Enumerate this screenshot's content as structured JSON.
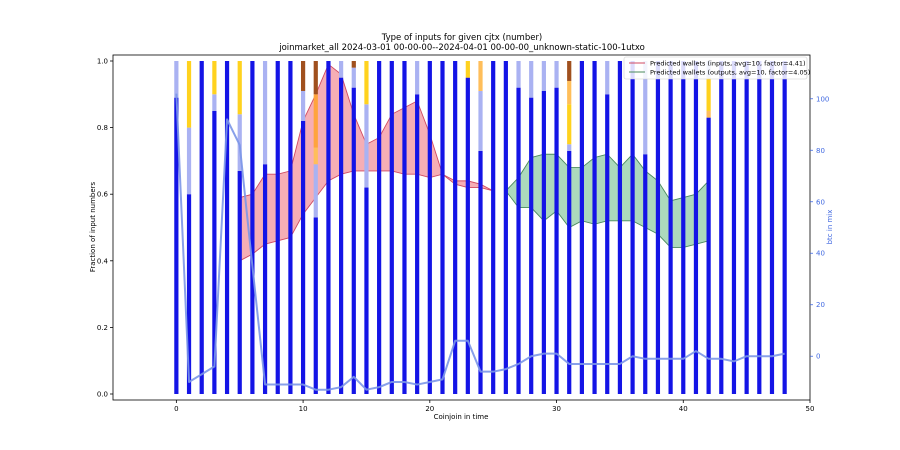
{
  "chart_data": {
    "type": "bar",
    "title": "Type of inputs for given cjtx (number)",
    "subtitle": "joinmarket_all 2024-03-01 00-00-00--2024-04-01 00-00-00_unknown-static-100-1utxo",
    "xlabel": "Coinjoin in time",
    "ylabel": "Fraction of input numbers",
    "y2label": "btc in mix",
    "xlim": [
      -5,
      50
    ],
    "ylim": [
      0,
      1
    ],
    "y2lim": [
      -17,
      117
    ],
    "x_ticks": [
      "0",
      "10",
      "20",
      "30",
      "40",
      "50"
    ],
    "y_ticks": [
      "0.0",
      "0.2",
      "0.4",
      "0.6",
      "0.8",
      "1.0"
    ],
    "y2_ticks": [
      "0",
      "20",
      "40",
      "60",
      "80",
      "100"
    ],
    "legend_position": "top-right",
    "colors": {
      "blue": "#1414e6",
      "light_blue": "#aab2f2",
      "yellow": "#ffd21e",
      "light_orange": "#ffbe5a",
      "orange": "#ffa43c",
      "brown": "#a0501e",
      "btc_line": "#7b96e8",
      "inputs_fill": "#f5a0a8",
      "inputs_line": "#d04a62",
      "outputs_fill": "#9ed2b0",
      "outputs_line": "#4a8a5c"
    },
    "bars": [
      {
        "x": 0,
        "segments": [
          {
            "c": "blue",
            "v": 0.89
          },
          {
            "c": "light_blue",
            "v": 0.11
          }
        ]
      },
      {
        "x": 1,
        "segments": [
          {
            "c": "blue",
            "v": 0.6
          },
          {
            "c": "light_blue",
            "v": 0.2
          },
          {
            "c": "yellow",
            "v": 0.2
          }
        ]
      },
      {
        "x": 2,
        "segments": [
          {
            "c": "blue",
            "v": 1.0
          }
        ]
      },
      {
        "x": 3,
        "segments": [
          {
            "c": "blue",
            "v": 0.85
          },
          {
            "c": "light_blue",
            "v": 0.05
          },
          {
            "c": "yellow",
            "v": 0.1
          }
        ]
      },
      {
        "x": 4,
        "segments": [
          {
            "c": "blue",
            "v": 1.0
          }
        ]
      },
      {
        "x": 5,
        "segments": [
          {
            "c": "blue",
            "v": 0.67
          },
          {
            "c": "light_blue",
            "v": 0.17
          },
          {
            "c": "yellow",
            "v": 0.16
          }
        ]
      },
      {
        "x": 6,
        "segments": [
          {
            "c": "blue",
            "v": 1.0
          }
        ]
      },
      {
        "x": 7,
        "segments": [
          {
            "c": "blue",
            "v": 0.69
          },
          {
            "c": "light_blue",
            "v": 0.31
          }
        ]
      },
      {
        "x": 8,
        "segments": [
          {
            "c": "blue",
            "v": 1.0
          }
        ]
      },
      {
        "x": 9,
        "segments": [
          {
            "c": "blue",
            "v": 1.0
          }
        ]
      },
      {
        "x": 10,
        "segments": [
          {
            "c": "blue",
            "v": 0.82
          },
          {
            "c": "light_blue",
            "v": 0.09
          },
          {
            "c": "brown",
            "v": 0.09
          }
        ]
      },
      {
        "x": 11,
        "segments": [
          {
            "c": "blue",
            "v": 0.53
          },
          {
            "c": "light_blue",
            "v": 0.16
          },
          {
            "c": "light_orange",
            "v": 0.05
          },
          {
            "c": "orange",
            "v": 0.16
          },
          {
            "c": "brown",
            "v": 0.1
          }
        ]
      },
      {
        "x": 12,
        "segments": [
          {
            "c": "blue",
            "v": 1.0
          }
        ]
      },
      {
        "x": 13,
        "segments": [
          {
            "c": "blue",
            "v": 0.95
          },
          {
            "c": "light_blue",
            "v": 0.05
          }
        ]
      },
      {
        "x": 14,
        "segments": [
          {
            "c": "blue",
            "v": 0.92
          },
          {
            "c": "light_blue",
            "v": 0.06
          },
          {
            "c": "brown",
            "v": 0.02
          }
        ]
      },
      {
        "x": 15,
        "segments": [
          {
            "c": "blue",
            "v": 0.62
          },
          {
            "c": "light_blue",
            "v": 0.25
          },
          {
            "c": "yellow",
            "v": 0.13
          }
        ]
      },
      {
        "x": 16,
        "segments": [
          {
            "c": "blue",
            "v": 1.0
          }
        ]
      },
      {
        "x": 17,
        "segments": [
          {
            "c": "blue",
            "v": 1.0
          }
        ]
      },
      {
        "x": 18,
        "segments": [
          {
            "c": "blue",
            "v": 1.0
          }
        ]
      },
      {
        "x": 19,
        "segments": [
          {
            "c": "blue",
            "v": 0.9
          },
          {
            "c": "light_blue",
            "v": 0.1
          }
        ]
      },
      {
        "x": 20,
        "segments": [
          {
            "c": "blue",
            "v": 1.0
          }
        ]
      },
      {
        "x": 21,
        "segments": [
          {
            "c": "blue",
            "v": 1.0
          }
        ]
      },
      {
        "x": 22,
        "segments": [
          {
            "c": "blue",
            "v": 1.0
          }
        ]
      },
      {
        "x": 23,
        "segments": [
          {
            "c": "blue",
            "v": 0.95
          },
          {
            "c": "yellow",
            "v": 0.05
          }
        ]
      },
      {
        "x": 24,
        "segments": [
          {
            "c": "blue",
            "v": 0.73
          },
          {
            "c": "light_blue",
            "v": 0.18
          },
          {
            "c": "light_orange",
            "v": 0.09
          }
        ]
      },
      {
        "x": 25,
        "segments": [
          {
            "c": "blue",
            "v": 1.0
          }
        ]
      },
      {
        "x": 26,
        "segments": [
          {
            "c": "blue",
            "v": 1.0
          }
        ]
      },
      {
        "x": 27,
        "segments": [
          {
            "c": "blue",
            "v": 0.92
          },
          {
            "c": "light_blue",
            "v": 0.08
          }
        ]
      },
      {
        "x": 28,
        "segments": [
          {
            "c": "blue",
            "v": 0.89
          },
          {
            "c": "light_blue",
            "v": 0.11
          }
        ]
      },
      {
        "x": 29,
        "segments": [
          {
            "c": "blue",
            "v": 0.91
          },
          {
            "c": "light_blue",
            "v": 0.09
          }
        ]
      },
      {
        "x": 30,
        "segments": [
          {
            "c": "blue",
            "v": 0.92
          },
          {
            "c": "light_blue",
            "v": 0.08
          }
        ]
      },
      {
        "x": 31,
        "segments": [
          {
            "c": "blue",
            "v": 0.73
          },
          {
            "c": "light_blue",
            "v": 0.02
          },
          {
            "c": "yellow",
            "v": 0.12
          },
          {
            "c": "light_orange",
            "v": 0.07
          },
          {
            "c": "brown",
            "v": 0.06
          }
        ]
      },
      {
        "x": 32,
        "segments": [
          {
            "c": "blue",
            "v": 1.0
          }
        ]
      },
      {
        "x": 33,
        "segments": [
          {
            "c": "blue",
            "v": 1.0
          }
        ]
      },
      {
        "x": 34,
        "segments": [
          {
            "c": "blue",
            "v": 0.9
          },
          {
            "c": "light_blue",
            "v": 0.1
          }
        ]
      },
      {
        "x": 35,
        "segments": [
          {
            "c": "blue",
            "v": 1.0
          }
        ]
      },
      {
        "x": 36,
        "segments": [
          {
            "c": "blue",
            "v": 1.0
          }
        ]
      },
      {
        "x": 37,
        "segments": [
          {
            "c": "blue",
            "v": 0.72
          },
          {
            "c": "light_blue",
            "v": 0.28
          }
        ]
      },
      {
        "x": 38,
        "segments": [
          {
            "c": "blue",
            "v": 1.0
          }
        ]
      },
      {
        "x": 39,
        "segments": [
          {
            "c": "blue",
            "v": 1.0
          }
        ]
      },
      {
        "x": 40,
        "segments": [
          {
            "c": "blue",
            "v": 1.0
          }
        ]
      },
      {
        "x": 41,
        "segments": [
          {
            "c": "blue",
            "v": 1.0
          }
        ]
      },
      {
        "x": 42,
        "segments": [
          {
            "c": "blue",
            "v": 0.83
          },
          {
            "c": "light_orange",
            "v": 0.02
          },
          {
            "c": "yellow",
            "v": 0.1
          },
          {
            "c": "light_blue",
            "v": 0.05
          }
        ]
      },
      {
        "x": 43,
        "segments": [
          {
            "c": "blue",
            "v": 1.0
          }
        ]
      },
      {
        "x": 44,
        "segments": [
          {
            "c": "blue",
            "v": 1.0
          }
        ]
      },
      {
        "x": 45,
        "segments": [
          {
            "c": "blue",
            "v": 1.0
          }
        ]
      },
      {
        "x": 46,
        "segments": [
          {
            "c": "blue",
            "v": 1.0
          }
        ]
      },
      {
        "x": 47,
        "segments": [
          {
            "c": "blue",
            "v": 1.0
          }
        ]
      },
      {
        "x": 48,
        "segments": [
          {
            "c": "blue",
            "v": 1.0
          }
        ]
      }
    ],
    "btc_in_mix": {
      "x": [
        0,
        1,
        2,
        3,
        4,
        5,
        6,
        7,
        8,
        9,
        10,
        11,
        12,
        13,
        14,
        15,
        16,
        17,
        18,
        19,
        20,
        21,
        22,
        23,
        24,
        25,
        26,
        27,
        28,
        29,
        30,
        31,
        32,
        33,
        34,
        35,
        36,
        37,
        38,
        39,
        40,
        41,
        42,
        43,
        44,
        45,
        46,
        47,
        48
      ],
      "y": [
        102,
        -10,
        -7,
        -4,
        92,
        82,
        35,
        -11,
        -11,
        -11,
        -11,
        -13,
        -13,
        -12,
        -8,
        -13,
        -12,
        -10,
        -10,
        -11,
        -10,
        -9,
        6,
        6,
        -6,
        -6,
        -5,
        -3,
        0,
        1,
        1,
        -3,
        -3,
        -3,
        -3,
        -3,
        0,
        -1,
        -1,
        -1,
        -1,
        2,
        -1,
        -1,
        -2,
        0,
        0,
        0,
        1
      ]
    },
    "series": [
      {
        "name": "Predicted wallets (inputs, avg=10, factor=4.41)",
        "x": [
          5,
          6,
          7,
          8,
          9,
          10,
          11,
          12,
          13,
          14,
          15,
          16,
          17,
          18,
          19,
          20,
          21,
          22,
          23,
          24,
          25
        ],
        "upper": [
          0.59,
          0.6,
          0.66,
          0.66,
          0.67,
          0.82,
          0.9,
          0.99,
          0.96,
          0.84,
          0.75,
          0.77,
          0.84,
          0.86,
          0.88,
          0.78,
          0.66,
          0.64,
          0.64,
          0.63,
          0.61
        ],
        "lower": [
          0.4,
          0.42,
          0.45,
          0.46,
          0.47,
          0.54,
          0.59,
          0.64,
          0.66,
          0.67,
          0.67,
          0.67,
          0.67,
          0.66,
          0.66,
          0.65,
          0.66,
          0.63,
          0.62,
          0.62,
          0.61
        ]
      },
      {
        "name": "Predicted wallets (outputs, avg=10, factor=4.05)",
        "x": [
          26,
          27,
          28,
          29,
          30,
          31,
          32,
          33,
          34,
          35,
          36,
          37,
          38,
          39,
          40,
          41,
          42
        ],
        "upper": [
          0.61,
          0.65,
          0.71,
          0.72,
          0.72,
          0.68,
          0.68,
          0.71,
          0.72,
          0.68,
          0.72,
          0.67,
          0.64,
          0.58,
          0.59,
          0.6,
          0.64
        ],
        "lower": [
          0.61,
          0.56,
          0.56,
          0.52,
          0.55,
          0.5,
          0.52,
          0.51,
          0.52,
          0.52,
          0.52,
          0.5,
          0.48,
          0.44,
          0.44,
          0.45,
          0.46
        ]
      }
    ]
  }
}
